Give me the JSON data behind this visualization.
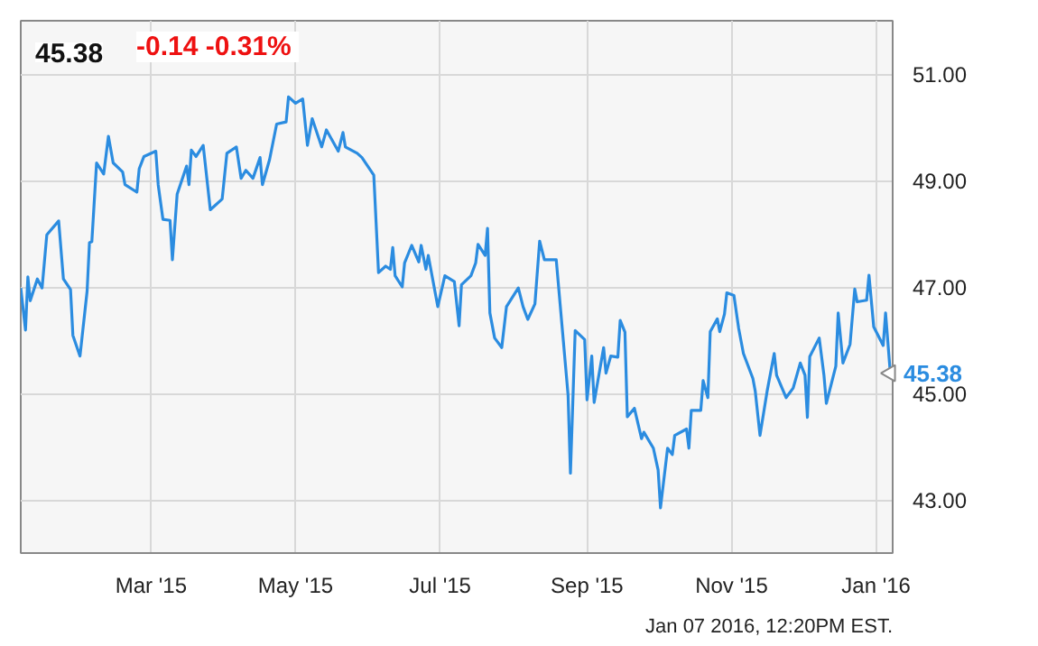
{
  "chart_data": {
    "type": "line",
    "title": "45.38",
    "subtitle": "-0.14  -0.31%",
    "x": [
      "2015-01-05",
      "2015-01-07",
      "2015-01-08",
      "2015-01-09",
      "2015-01-12",
      "2015-01-14",
      "2015-01-16",
      "2015-01-21",
      "2015-01-23",
      "2015-01-26",
      "2015-01-27",
      "2015-01-30",
      "2015-02-02",
      "2015-02-03",
      "2015-02-04",
      "2015-02-06",
      "2015-02-09",
      "2015-02-11",
      "2015-02-13",
      "2015-02-17",
      "2015-02-18",
      "2015-02-23",
      "2015-02-24",
      "2015-02-26",
      "2015-03-03",
      "2015-03-04",
      "2015-03-06",
      "2015-03-09",
      "2015-03-10",
      "2015-03-12",
      "2015-03-16",
      "2015-03-17",
      "2015-03-18",
      "2015-03-20",
      "2015-03-23",
      "2015-03-26",
      "2015-03-31",
      "2015-04-02",
      "2015-04-06",
      "2015-04-08",
      "2015-04-10",
      "2015-04-13",
      "2015-04-16",
      "2015-04-17",
      "2015-04-20",
      "2015-04-23",
      "2015-04-27",
      "2015-04-28",
      "2015-05-01",
      "2015-05-04",
      "2015-05-06",
      "2015-05-08",
      "2015-05-12",
      "2015-05-14",
      "2015-05-19",
      "2015-05-21",
      "2015-05-22",
      "2015-05-27",
      "2015-05-29",
      "2015-06-03",
      "2015-06-05",
      "2015-06-08",
      "2015-06-10",
      "2015-06-11",
      "2015-06-12",
      "2015-06-15",
      "2015-06-16",
      "2015-06-19",
      "2015-06-22",
      "2015-06-23",
      "2015-06-25",
      "2015-06-26",
      "2015-06-30",
      "2015-07-03",
      "2015-07-07",
      "2015-07-09",
      "2015-07-10",
      "2015-07-14",
      "2015-07-16",
      "2015-07-17",
      "2015-07-20",
      "2015-07-21",
      "2015-07-22",
      "2015-07-24",
      "2015-07-27",
      "2015-07-29",
      "2015-08-03",
      "2015-08-05",
      "2015-08-07",
      "2015-08-10",
      "2015-08-12",
      "2015-08-14",
      "2015-08-19",
      "2015-08-24",
      "2015-08-25",
      "2015-08-27",
      "2015-08-31",
      "2015-09-01",
      "2015-09-03",
      "2015-09-04",
      "2015-09-08",
      "2015-09-09",
      "2015-09-11",
      "2015-09-14",
      "2015-09-15",
      "2015-09-17",
      "2015-09-18",
      "2015-09-21",
      "2015-09-24",
      "2015-09-25",
      "2015-09-29",
      "2015-10-01",
      "2015-10-02",
      "2015-10-05",
      "2015-10-07",
      "2015-10-08",
      "2015-10-13",
      "2015-10-14",
      "2015-10-15",
      "2015-10-19",
      "2015-10-20",
      "2015-10-22",
      "2015-10-23",
      "2015-10-26",
      "2015-10-27",
      "2015-10-29",
      "2015-10-30",
      "2015-11-02",
      "2015-11-04",
      "2015-11-06",
      "2015-11-10",
      "2015-11-11",
      "2015-11-13",
      "2015-11-16",
      "2015-11-19",
      "2015-11-20",
      "2015-11-24",
      "2015-11-27",
      "2015-11-30",
      "2015-12-02",
      "2015-12-03",
      "2015-12-04",
      "2015-12-08",
      "2015-12-10",
      "2015-12-11",
      "2015-12-15",
      "2015-12-16",
      "2015-12-18",
      "2015-12-21",
      "2015-12-23",
      "2015-12-24",
      "2015-12-28",
      "2015-12-29",
      "2015-12-31",
      "2016-01-04",
      "2016-01-05",
      "2016-01-07"
    ],
    "series": [
      {
        "color": "#2b8ce0",
        "values": [
          46.98,
          46.19,
          47.19,
          46.74,
          47.15,
          46.98,
          47.98,
          48.24,
          47.15,
          46.95,
          46.09,
          45.7,
          46.92,
          47.83,
          47.85,
          49.33,
          49.12,
          49.83,
          49.33,
          49.16,
          48.92,
          48.78,
          49.22,
          49.45,
          49.55,
          48.92,
          48.27,
          48.25,
          47.51,
          48.74,
          49.27,
          48.92,
          49.57,
          49.45,
          49.66,
          48.45,
          48.65,
          49.51,
          49.63,
          49.04,
          49.19,
          49.04,
          49.43,
          48.92,
          49.39,
          50.06,
          50.1,
          50.57,
          50.45,
          50.53,
          49.66,
          50.16,
          49.63,
          49.95,
          49.55,
          49.9,
          49.63,
          49.51,
          49.43,
          49.1,
          47.27,
          47.39,
          47.33,
          47.74,
          47.21,
          47.0,
          47.45,
          47.78,
          47.47,
          47.78,
          47.33,
          47.59,
          46.63,
          47.21,
          47.1,
          46.27,
          47.04,
          47.21,
          47.45,
          47.8,
          47.59,
          48.1,
          46.51,
          46.04,
          45.86,
          46.63,
          46.98,
          46.63,
          46.39,
          46.68,
          47.86,
          47.51,
          47.51,
          44.97,
          43.5,
          46.18,
          46.01,
          44.88,
          45.7,
          44.83,
          45.86,
          45.38,
          45.7,
          45.68,
          46.37,
          46.15,
          44.56,
          44.72,
          44.15,
          44.27,
          43.97,
          43.56,
          42.85,
          43.97,
          43.85,
          44.21,
          44.33,
          43.97,
          44.68,
          44.68,
          45.24,
          44.92,
          46.16,
          46.4,
          46.16,
          46.49,
          46.89,
          46.84,
          46.22,
          45.75,
          45.28,
          45.04,
          44.21,
          45.04,
          45.75,
          45.34,
          44.92,
          45.1,
          45.57,
          45.34,
          44.55,
          45.69,
          46.04,
          45.34,
          44.81,
          45.51,
          46.51,
          45.57,
          45.92,
          46.96,
          46.72,
          46.75,
          47.22,
          46.25,
          45.9,
          46.51,
          45.38
        ]
      }
    ],
    "xlim": [
      "2015-01-05",
      "2016-01-08"
    ],
    "xticks": [
      {
        "value": "2015-03-01",
        "label": "Mar '15"
      },
      {
        "value": "2015-05-01",
        "label": "May '15"
      },
      {
        "value": "2015-07-01",
        "label": "Jul '15"
      },
      {
        "value": "2015-09-01",
        "label": "Sep '15"
      },
      {
        "value": "2015-11-01",
        "label": "Nov '15"
      },
      {
        "value": "2016-01-01",
        "label": "Jan '16"
      }
    ],
    "ylim": [
      42,
      52
    ],
    "yticks": [
      {
        "value": 43,
        "label": "43.00"
      },
      {
        "value": 45,
        "label": "45.00"
      },
      {
        "value": 47,
        "label": "47.00"
      },
      {
        "value": 49,
        "label": "49.00"
      },
      {
        "value": 51,
        "label": "51.00"
      }
    ],
    "grid": true,
    "line_style": "solid",
    "marker": "none",
    "annotations": [
      {
        "text": "45.38",
        "x": "2016-01-07",
        "y": 45.38
      },
      "Jan 07 2016, 12:20PM EST."
    ]
  }
}
